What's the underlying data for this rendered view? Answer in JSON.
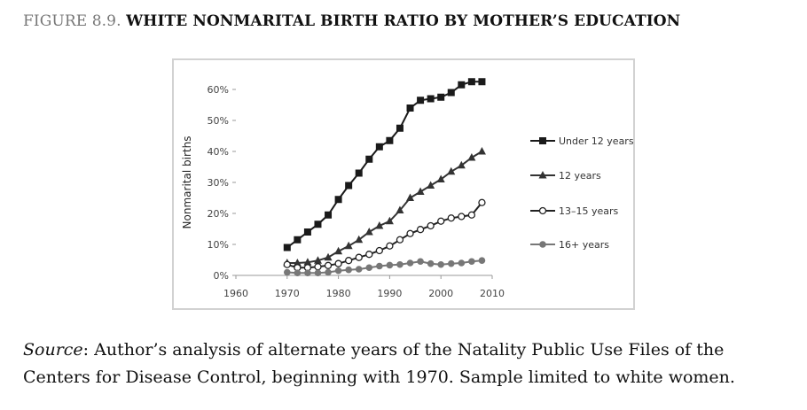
{
  "figure": {
    "label": "FIGURE 8.9.",
    "title": "WHITE NONMARITAL BIRTH RATIO BY MOTHER’S EDUCATION"
  },
  "source": {
    "label": "Source",
    "text": ": Author’s analysis of alternate years of the Natality Public Use Files of the Centers for Disease Control, beginning with 1970. Sample limited to white women."
  },
  "chart_data": {
    "type": "line",
    "title": "",
    "xlabel": "",
    "ylabel": "Nonmarital births",
    "xlim": [
      1960,
      2010
    ],
    "ylim": [
      0,
      60
    ],
    "x_ticks": [
      "1960",
      "1970",
      "1980",
      "1990",
      "2000",
      "2010"
    ],
    "y_ticks": [
      "0%",
      "10%",
      "20%",
      "30%",
      "40%",
      "50%",
      "60%"
    ],
    "x": [
      1970,
      1972,
      1974,
      1976,
      1978,
      1980,
      1982,
      1984,
      1986,
      1988,
      1990,
      1992,
      1994,
      1996,
      1998,
      2000,
      2002,
      2004,
      2006,
      2008
    ],
    "series": [
      {
        "name": "Under 12 years",
        "marker": "square",
        "color": "#1a1a1a",
        "values": [
          9,
          11.5,
          14,
          16.5,
          19.5,
          24.5,
          29,
          33,
          37.5,
          41.5,
          43.5,
          47.5,
          54,
          56.5,
          57,
          57.5,
          59,
          61.5,
          62.5,
          62.5
        ]
      },
      {
        "name": "12 years",
        "marker": "triangle",
        "color": "#333333",
        "values": [
          4,
          4,
          4.2,
          4.8,
          5.8,
          7.8,
          9.5,
          11.5,
          14,
          16,
          17.5,
          21,
          25,
          27,
          29,
          31,
          33.5,
          35.5,
          38,
          40
        ]
      },
      {
        "name": "13–15 years",
        "marker": "circle-open",
        "color": "#222222",
        "values": [
          3.5,
          2.5,
          2.5,
          2.8,
          3.2,
          3.8,
          4.8,
          5.8,
          6.8,
          8,
          9.5,
          11.5,
          13.5,
          14.8,
          16,
          17.5,
          18.5,
          19,
          19.5,
          23.5
        ]
      },
      {
        "name": "16+ years",
        "marker": "circle-filled",
        "color": "#777777",
        "values": [
          1,
          0.8,
          0.8,
          0.8,
          1,
          1.5,
          1.8,
          2,
          2.5,
          3,
          3.3,
          3.5,
          4,
          4.5,
          3.8,
          3.5,
          3.8,
          4,
          4.5,
          4.8
        ]
      }
    ],
    "legend_position": "right"
  }
}
